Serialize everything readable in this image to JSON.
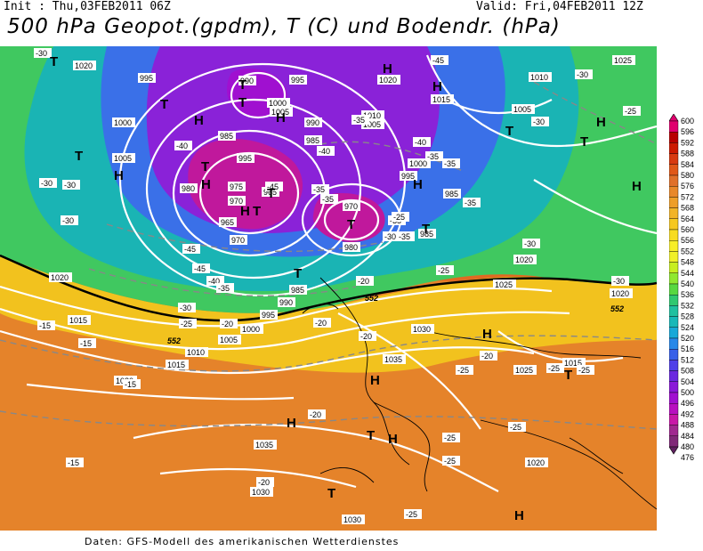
{
  "header": {
    "init": "Init : Thu,03FEB2011 06Z",
    "valid": "Valid: Fri,04FEB2011 12Z",
    "title": "500 hPa Geopot.(gpdm), T (C) und Bodendr. (hPa)"
  },
  "footer": "Daten: GFS-Modell des amerikanischen Wetterdienstes",
  "legend": {
    "ticks": [
      "600",
      "596",
      "592",
      "588",
      "584",
      "580",
      "576",
      "572",
      "568",
      "564",
      "560",
      "556",
      "552",
      "548",
      "544",
      "540",
      "536",
      "532",
      "528",
      "524",
      "520",
      "516",
      "512",
      "508",
      "504",
      "500",
      "496",
      "492",
      "488",
      "484",
      "480",
      "476"
    ],
    "colors": [
      "#e0006e",
      "#b80000",
      "#cc1a00",
      "#d83a10",
      "#e05818",
      "#e0702a",
      "#e8882a",
      "#ee9e28",
      "#f2b428",
      "#f6c820",
      "#f8dc20",
      "#f8ee28",
      "#f0f028",
      "#c8ee20",
      "#90e830",
      "#58d840",
      "#30c870",
      "#20c0a0",
      "#18b8b8",
      "#18a8d8",
      "#2888e8",
      "#3860e8",
      "#5040e8",
      "#6a28e0",
      "#8a18d8",
      "#a010d0",
      "#b810c0",
      "#c818a8",
      "#a02890",
      "#802878",
      "#602060"
    ]
  },
  "map": {
    "pressure_labels": [
      "1000",
      "995",
      "990",
      "985",
      "980",
      "975",
      "970",
      "965",
      "1005",
      "1010",
      "1015",
      "1020",
      "1025",
      "1030",
      "1035"
    ],
    "temp_labels": [
      "-45",
      "-40",
      "-35",
      "-30",
      "-25",
      "-20",
      "-15"
    ],
    "geopot_labels": [
      "552",
      "552",
      "552"
    ],
    "high_low": [
      "H",
      "T"
    ]
  }
}
